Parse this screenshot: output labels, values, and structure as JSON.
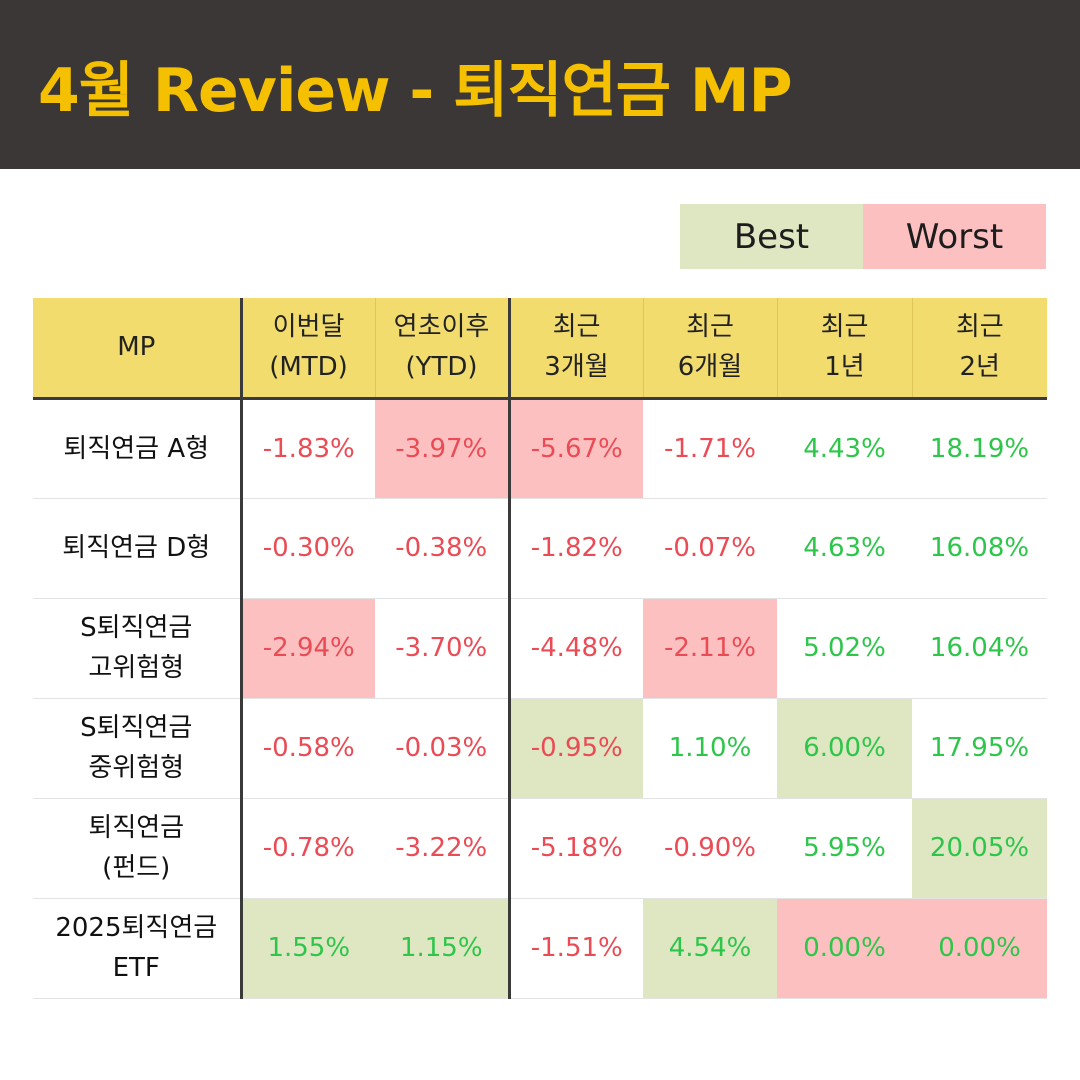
{
  "title": "4월 Review - 퇴직연금 MP",
  "legend": {
    "best": {
      "label": "Best",
      "color": "#dfe6c2"
    },
    "worst": {
      "label": "Worst",
      "color": "#fdc0c0"
    }
  },
  "colors": {
    "header_bg": "#3b3736",
    "title": "#f5c000",
    "table_header_bg": "#f2dc6e",
    "negative": "#ea4b55",
    "positive": "#2dc64a"
  },
  "table": {
    "headers": [
      {
        "l1": "MP",
        "l2": ""
      },
      {
        "l1": "이번달",
        "l2": "(MTD)"
      },
      {
        "l1": "연초이후",
        "l2": "(YTD)"
      },
      {
        "l1": "최근",
        "l2": "3개월"
      },
      {
        "l1": "최근",
        "l2": "6개월"
      },
      {
        "l1": "최근",
        "l2": "1년"
      },
      {
        "l1": "최근",
        "l2": "2년"
      }
    ],
    "rows": [
      {
        "name1": "퇴직연금 A형",
        "name2": "",
        "values": [
          "-1.83%",
          "-3.97%",
          "-5.67%",
          "-1.71%",
          "4.43%",
          "18.19%"
        ],
        "highlight": [
          "",
          "worst",
          "worst",
          "",
          "",
          ""
        ]
      },
      {
        "name1": "퇴직연금 D형",
        "name2": "",
        "values": [
          "-0.30%",
          "-0.38%",
          "-1.82%",
          "-0.07%",
          "4.63%",
          "16.08%"
        ],
        "highlight": [
          "",
          "",
          "",
          "",
          "",
          ""
        ]
      },
      {
        "name1": "S퇴직연금",
        "name2": "고위험형",
        "values": [
          "-2.94%",
          "-3.70%",
          "-4.48%",
          "-2.11%",
          "5.02%",
          "16.04%"
        ],
        "highlight": [
          "worst",
          "",
          "",
          "worst",
          "",
          ""
        ]
      },
      {
        "name1": "S퇴직연금",
        "name2": "중위험형",
        "values": [
          "-0.58%",
          "-0.03%",
          "-0.95%",
          "1.10%",
          "6.00%",
          "17.95%"
        ],
        "highlight": [
          "",
          "",
          "best",
          "",
          "best",
          ""
        ]
      },
      {
        "name1": "퇴직연금",
        "name2": "(펀드)",
        "values": [
          "-0.78%",
          "-3.22%",
          "-5.18%",
          "-0.90%",
          "5.95%",
          "20.05%"
        ],
        "highlight": [
          "",
          "",
          "",
          "",
          "",
          "best"
        ]
      },
      {
        "name1": "2025퇴직연금",
        "name2": "ETF",
        "values": [
          "1.55%",
          "1.15%",
          "-1.51%",
          "4.54%",
          "0.00%",
          "0.00%"
        ],
        "highlight": [
          "best",
          "best",
          "",
          "best",
          "worst",
          "worst"
        ]
      }
    ]
  }
}
